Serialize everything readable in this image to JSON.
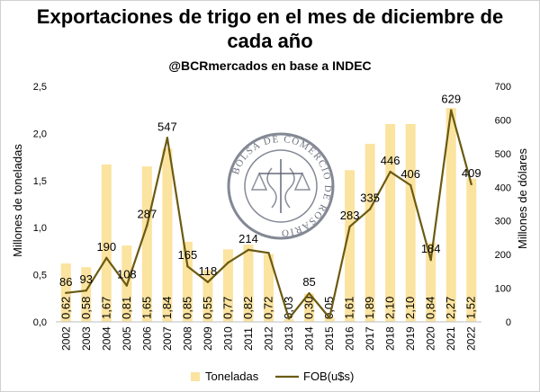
{
  "chart_data": {
    "type": "bar",
    "title_line1": "Exportaciones de trigo en el mes de diciembre de",
    "title_line2": "cada año",
    "subtitle": "@BCRmercados en base a INDEC",
    "categories": [
      "2002",
      "2003",
      "2004",
      "2005",
      "2006",
      "2007",
      "2008",
      "2009",
      "2010",
      "2011",
      "2012",
      "2013",
      "2014",
      "2015",
      "2016",
      "2017",
      "2018",
      "2019",
      "2020",
      "2021",
      "2022"
    ],
    "series": [
      {
        "name": "Toneladas",
        "type": "bar",
        "axis": "left",
        "values": [
          0.62,
          0.58,
          1.67,
          0.81,
          1.65,
          1.84,
          0.85,
          0.55,
          0.77,
          0.82,
          0.72,
          0.03,
          0.3,
          0.05,
          1.61,
          1.89,
          2.1,
          2.1,
          0.84,
          2.27,
          1.52
        ],
        "labels": [
          "0,62",
          "0,58",
          "1,67",
          "0,81",
          "1,65",
          "1,84",
          "0,85",
          "0,55",
          "0,77",
          "0,82",
          "0,72",
          "0,03",
          "0,30",
          "0,05",
          "1,61",
          "1,89",
          "2,10",
          "2,10",
          "0,84",
          "2,27",
          "1,52"
        ],
        "color": "#fbe3a0"
      },
      {
        "name": "FOB(u$s)",
        "type": "line",
        "axis": "right",
        "values": [
          86,
          93,
          190,
          108,
          287,
          547,
          165,
          118,
          176,
          214,
          205,
          10,
          85,
          12,
          283,
          335,
          446,
          406,
          184,
          629,
          409
        ],
        "labels": [
          "86",
          "93",
          "190",
          "108",
          "287",
          "547",
          "165",
          "118",
          "",
          "214",
          "",
          "",
          "85",
          "",
          "283",
          "335",
          "446",
          "406",
          "184",
          "629",
          "409"
        ],
        "color": "#6b5a10"
      }
    ],
    "ylabel_left": "Millones de toneladas",
    "ylabel_right": "Millones de dólares",
    "ylim_left": [
      0,
      2.5
    ],
    "yticks_left": [
      "0,0",
      "0,5",
      "1,0",
      "1,5",
      "2,0",
      "2,5"
    ],
    "ylim_right": [
      0,
      700
    ],
    "yticks_right": [
      "0",
      "100",
      "200",
      "300",
      "400",
      "500",
      "600",
      "700"
    ],
    "grid": false,
    "legend_placement": "bottom",
    "watermark_text": "BOLSA DE COMERCIO DE ROSARIO"
  }
}
